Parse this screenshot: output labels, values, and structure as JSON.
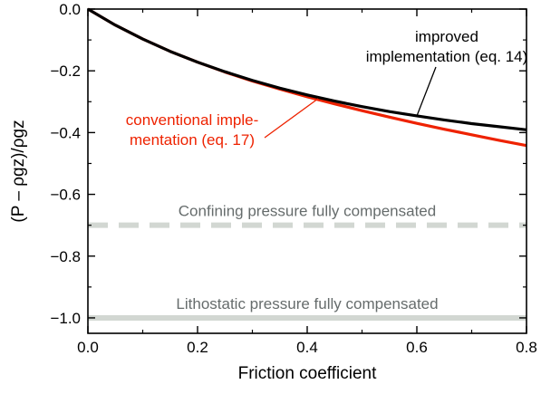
{
  "chart_data": {
    "type": "line",
    "xlabel": "Friction coefficient",
    "ylabel": "(P – ρgz)/ρgz",
    "xlim": [
      0.0,
      0.8
    ],
    "ylim": [
      -1.05,
      0.0
    ],
    "xticks": [
      0.0,
      0.2,
      0.4,
      0.6,
      0.8
    ],
    "xtick_labels": [
      "0.0",
      "0.2",
      "0.4",
      "0.6",
      "0.8"
    ],
    "yticks": [
      0.0,
      -0.2,
      -0.4,
      -0.6,
      -0.8,
      -1.0
    ],
    "ytick_labels": [
      "0.0",
      "−0.2",
      "−0.4",
      "−0.6",
      "−0.8",
      "−1.0"
    ],
    "grid": false,
    "series": [
      {
        "name": "improved implementation (eq. 14)",
        "color": "#000000",
        "x": [
          0.0,
          0.05,
          0.1,
          0.15,
          0.2,
          0.25,
          0.3,
          0.35,
          0.4,
          0.45,
          0.5,
          0.55,
          0.6,
          0.65,
          0.7,
          0.75,
          0.8
        ],
        "y": [
          0.0,
          -0.052,
          -0.097,
          -0.137,
          -0.172,
          -0.203,
          -0.231,
          -0.256,
          -0.278,
          -0.298,
          -0.316,
          -0.332,
          -0.346,
          -0.359,
          -0.371,
          -0.381,
          -0.391
        ]
      },
      {
        "name": "conventional implementation (eq. 17)",
        "color": "#ee2200",
        "x": [
          0.0,
          0.05,
          0.1,
          0.15,
          0.2,
          0.25,
          0.3,
          0.35,
          0.4,
          0.45,
          0.5,
          0.55,
          0.6,
          0.65,
          0.7,
          0.75,
          0.8
        ],
        "y": [
          0.0,
          -0.052,
          -0.097,
          -0.137,
          -0.172,
          -0.204,
          -0.233,
          -0.259,
          -0.284,
          -0.307,
          -0.329,
          -0.35,
          -0.37,
          -0.389,
          -0.407,
          -0.425,
          -0.442
        ]
      }
    ],
    "reference_lines": [
      {
        "y": -0.7,
        "label": "Confining pressure fully compensated",
        "color": "#d2d7d2",
        "style": "dashed"
      },
      {
        "y": -1.0,
        "label": "Lithostatic pressure fully compensated",
        "color": "#d2d7d2",
        "style": "solid"
      }
    ],
    "annotations": [
      {
        "lines": [
          "improved",
          "implementation (eq. 14)"
        ],
        "color": "#000000",
        "target_x": 0.6,
        "target_y": -0.346
      },
      {
        "lines": [
          "conventional imple-",
          "mentation (eq. 17)"
        ],
        "color": "#ee2200",
        "target_x": 0.42,
        "target_y": -0.29
      }
    ],
    "reference_label_color": "#666c6c"
  }
}
